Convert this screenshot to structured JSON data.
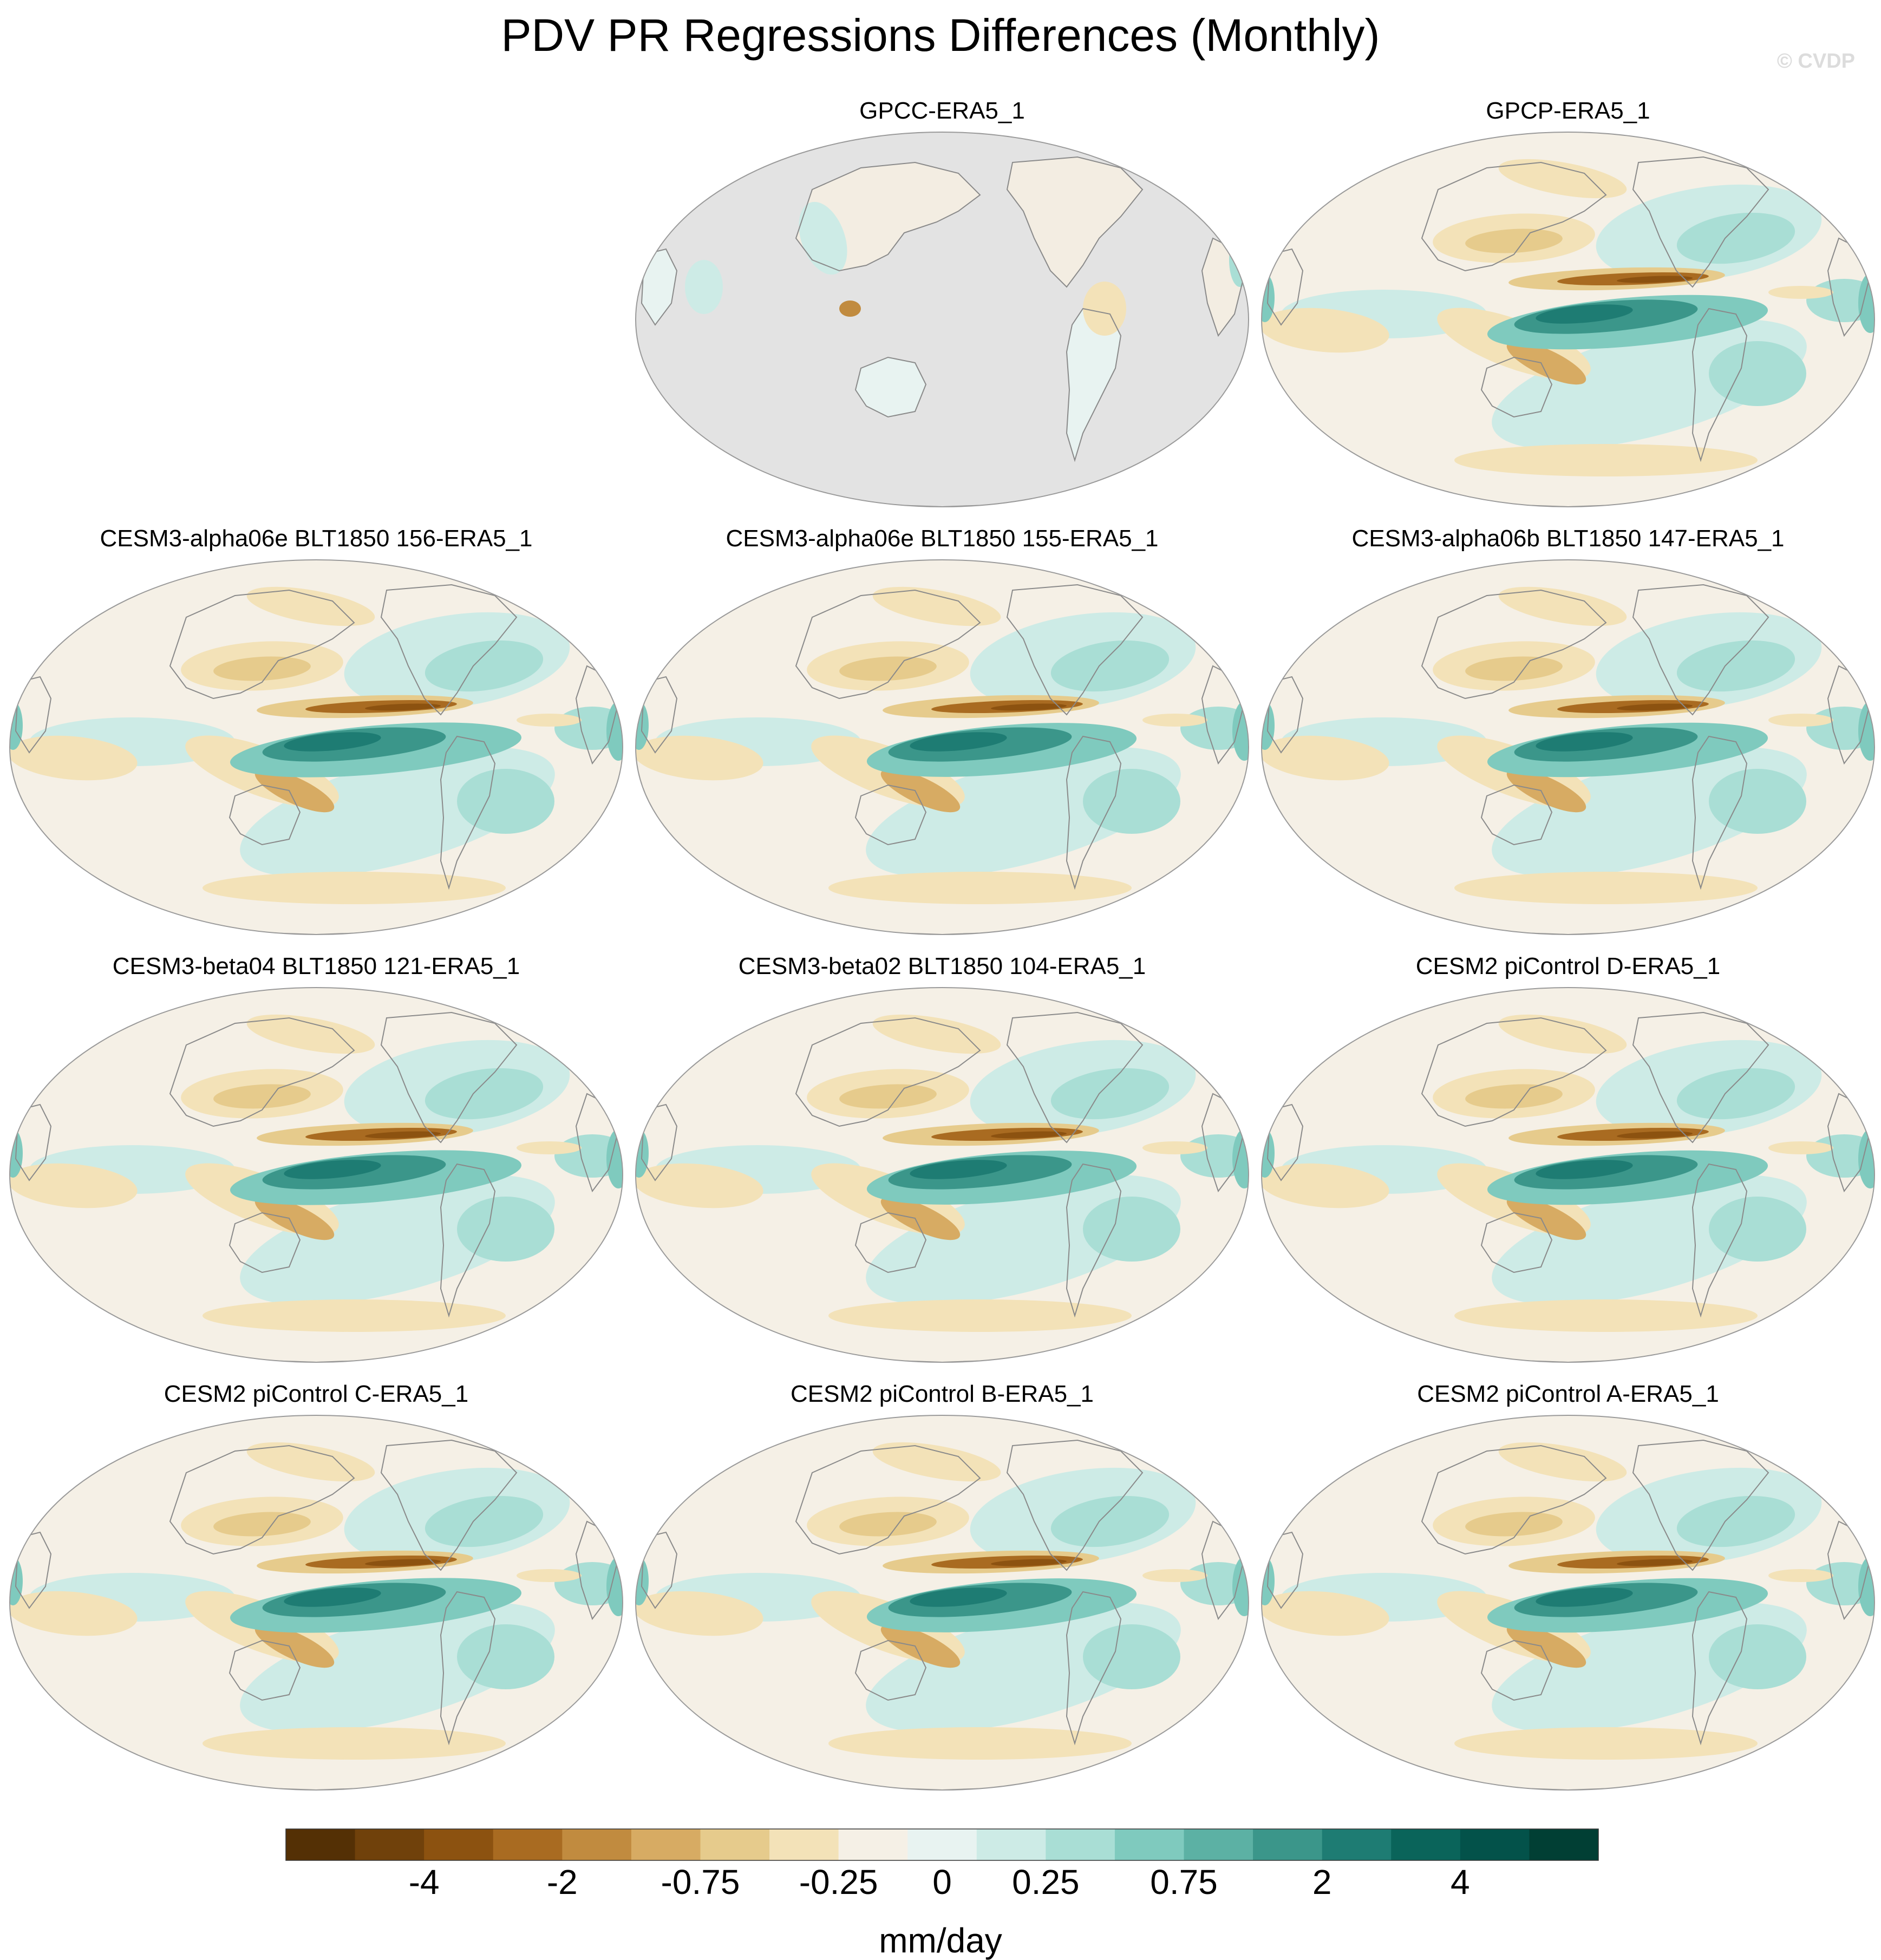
{
  "title": "PDV PR Regressions Differences (Monthly)",
  "watermark": "© CVDP",
  "chart_data": {
    "type": "heatmap",
    "projection": "Robinson, centered on the Pacific (map series of precipitation regression differences)",
    "variable": "PR regression on PDV index, difference from ERA5_1",
    "panels": [
      {
        "id": "p1",
        "title": "GPCC-ERA5_1",
        "ocean_masked": true
      },
      {
        "id": "p2",
        "title": "GPCP-ERA5_1",
        "ocean_masked": false
      },
      {
        "id": "p3",
        "title": "CESM3-alpha06e BLT1850 156-ERA5_1",
        "ocean_masked": false
      },
      {
        "id": "p4",
        "title": "CESM3-alpha06e BLT1850 155-ERA5_1",
        "ocean_masked": false
      },
      {
        "id": "p5",
        "title": "CESM3-alpha06b BLT1850 147-ERA5_1",
        "ocean_masked": false
      },
      {
        "id": "p6",
        "title": "CESM3-beta04 BLT1850 121-ERA5_1",
        "ocean_masked": false
      },
      {
        "id": "p7",
        "title": "CESM3-beta02 BLT1850 104-ERA5_1",
        "ocean_masked": false
      },
      {
        "id": "p8",
        "title": "CESM2 piControl D-ERA5_1",
        "ocean_masked": false
      },
      {
        "id": "p9",
        "title": "CESM2 piControl C-ERA5_1",
        "ocean_masked": false
      },
      {
        "id": "p10",
        "title": "CESM2 piControl B-ERA5_1",
        "ocean_masked": false
      },
      {
        "id": "p11",
        "title": "CESM2 piControl A-ERA5_1",
        "ocean_masked": false
      }
    ],
    "colorbar": {
      "label": "mm/day",
      "colors": [
        "#543005",
        "#70410b",
        "#8c5210",
        "#a96b21",
        "#c18b3f",
        "#d7ab63",
        "#e6cb8c",
        "#f3e2b8",
        "#f5f0e6",
        "#e8f3f1",
        "#cdebe6",
        "#a9ded5",
        "#7fcabe",
        "#5cb1a4",
        "#3b968a",
        "#1e7c73",
        "#0a645a",
        "#03524a",
        "#013f34"
      ],
      "tick_labels": [
        "-4",
        "-2",
        "-0.75",
        "-0.25",
        "0",
        "0.25",
        "0.75",
        "2",
        "4"
      ],
      "tick_values": [
        -4,
        -2,
        -0.75,
        -0.25,
        0,
        0.25,
        0.75,
        2,
        4
      ]
    }
  }
}
